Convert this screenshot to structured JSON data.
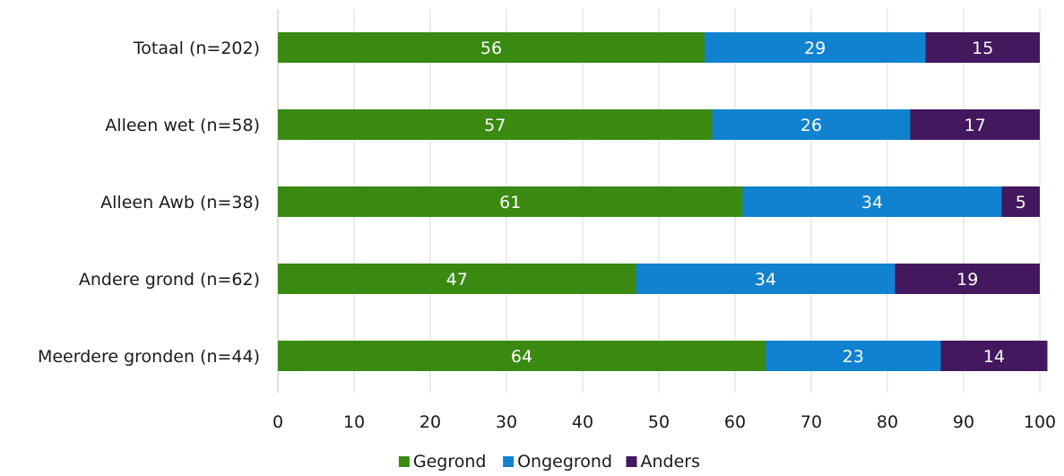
{
  "chart_data": {
    "type": "bar",
    "orientation": "horizontal",
    "stacked": true,
    "categories": [
      "Totaal (n=202)",
      "Alleen wet (n=58)",
      "Alleen Awb (n=38)",
      "Andere grond (n=62)",
      "Meerdere gronden (n=44)"
    ],
    "series": [
      {
        "name": "Gegrond",
        "color": "#3a8a12",
        "values": [
          56,
          57,
          61,
          47,
          64
        ]
      },
      {
        "name": "Ongegrond",
        "color": "#1082d0",
        "values": [
          29,
          26,
          34,
          34,
          23
        ]
      },
      {
        "name": "Anders",
        "color": "#43185e",
        "values": [
          15,
          17,
          5,
          19,
          14
        ]
      }
    ],
    "data_labels": [
      [
        "56",
        "57",
        "61",
        "47",
        "64"
      ],
      [
        "29",
        "26",
        "34",
        "34",
        "23"
      ],
      [
        "15",
        "17",
        "5",
        "19",
        "14"
      ]
    ],
    "xlim": [
      0,
      100
    ],
    "xticks": [
      0,
      10,
      20,
      30,
      40,
      50,
      60,
      70,
      80,
      90,
      100
    ],
    "xtick_labels": [
      "0",
      "10",
      "20",
      "30",
      "40",
      "50",
      "60",
      "70",
      "80",
      "90",
      "100"
    ],
    "grid": "vertical",
    "legend_position": "bottom",
    "title": "",
    "xlabel": "",
    "ylabel": ""
  }
}
